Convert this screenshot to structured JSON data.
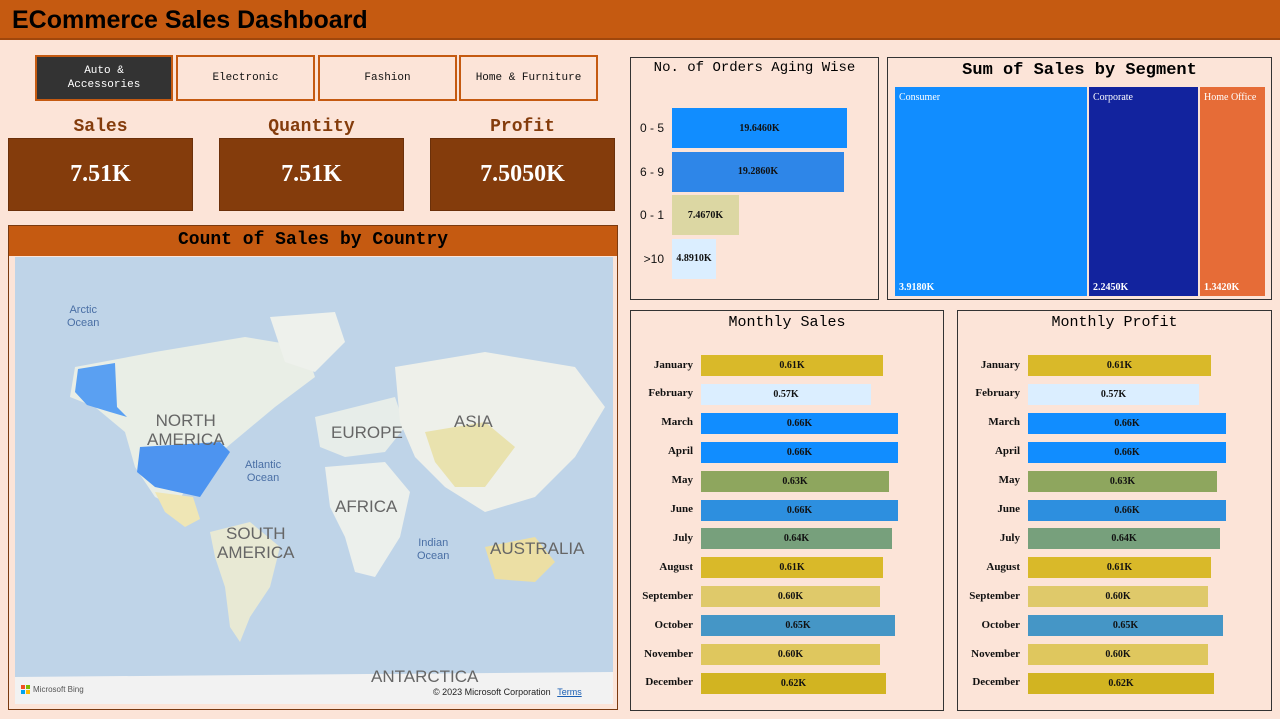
{
  "header": {
    "title": "ECommerce Sales Dashboard"
  },
  "slicers": [
    {
      "label": "Auto &\nAccessories",
      "active": true
    },
    {
      "label": "Electronic",
      "active": false
    },
    {
      "label": "Fashion",
      "active": false
    },
    {
      "label": "Home & Furniture",
      "active": false
    }
  ],
  "kpis": [
    {
      "label": "Sales",
      "value": "7.51K"
    },
    {
      "label": "Quantity",
      "value": "7.51K"
    },
    {
      "label": "Profit",
      "value": "7.5050K"
    }
  ],
  "map": {
    "title": "Count of Sales by Country",
    "continents": [
      "NORTH\nAMERICA",
      "EUROPE",
      "ASIA",
      "AFRICA",
      "SOUTH\nAMERICA",
      "AUSTRALIA",
      "ANTARCTICA"
    ],
    "oceans": [
      "Arctic\nOcean",
      "Atlantic\nOcean",
      "Indian\nOcean"
    ],
    "attribution": "© 2023 Microsoft Corporation",
    "terms": "Terms",
    "brand": "Microsoft Bing"
  },
  "aging": {
    "title": "No. of Orders Aging Wise",
    "chart_data": {
      "type": "bar",
      "orientation": "horizontal",
      "categories": [
        "0 - 5",
        "6 - 9",
        "0 - 1",
        ">10"
      ],
      "values": [
        19.646,
        19.286,
        7.467,
        4.891
      ],
      "labels": [
        "19.6460K",
        "19.2860K",
        "7.4670K",
        "4.8910K"
      ],
      "colors": [
        "#118dff",
        "#2e86e8",
        "#dcd7a3",
        "#dbeeff"
      ]
    }
  },
  "segment": {
    "title": "Sum of Sales by Segment",
    "chart_data": {
      "type": "treemap",
      "categories": [
        "Consumer",
        "Corporate",
        "Home Office"
      ],
      "values": [
        3.918,
        2.245,
        1.342
      ],
      "labels": [
        "3.9180K",
        "2.2450K",
        "1.3420K"
      ],
      "colors": [
        "#118dff",
        "#12239e",
        "#e66c37"
      ]
    }
  },
  "monthly_sales": {
    "title": "Monthly Sales",
    "chart_data": {
      "type": "bar",
      "orientation": "horizontal",
      "categories": [
        "January",
        "February",
        "March",
        "April",
        "May",
        "June",
        "July",
        "August",
        "September",
        "October",
        "November",
        "December"
      ],
      "values": [
        0.61,
        0.57,
        0.66,
        0.66,
        0.63,
        0.66,
        0.64,
        0.61,
        0.6,
        0.65,
        0.6,
        0.62
      ],
      "labels": [
        "0.61K",
        "0.57K",
        "0.66K",
        "0.66K",
        "0.63K",
        "0.66K",
        "0.64K",
        "0.61K",
        "0.60K",
        "0.65K",
        "0.60K",
        "0.62K"
      ],
      "colors": [
        "#d9b929",
        "#dbeeff",
        "#118dff",
        "#118dff",
        "#8ea65e",
        "#2d8fdf",
        "#77a07c",
        "#d9b929",
        "#dfc96a",
        "#4596c6",
        "#dfc75e",
        "#d2b421"
      ]
    }
  },
  "monthly_profit": {
    "title": "Monthly Profit",
    "chart_data": {
      "type": "bar",
      "orientation": "horizontal",
      "categories": [
        "January",
        "February",
        "March",
        "April",
        "May",
        "June",
        "July",
        "August",
        "September",
        "October",
        "November",
        "December"
      ],
      "values": [
        0.61,
        0.57,
        0.66,
        0.66,
        0.63,
        0.66,
        0.64,
        0.61,
        0.6,
        0.65,
        0.6,
        0.62
      ],
      "labels": [
        "0.61K",
        "0.57K",
        "0.66K",
        "0.66K",
        "0.63K",
        "0.66K",
        "0.64K",
        "0.61K",
        "0.60K",
        "0.65K",
        "0.60K",
        "0.62K"
      ],
      "colors": [
        "#d9b929",
        "#dbeeff",
        "#118dff",
        "#118dff",
        "#8ea65e",
        "#2d8fdf",
        "#77a07c",
        "#d9b929",
        "#dfc96a",
        "#4596c6",
        "#dfc75e",
        "#d2b421"
      ]
    }
  }
}
